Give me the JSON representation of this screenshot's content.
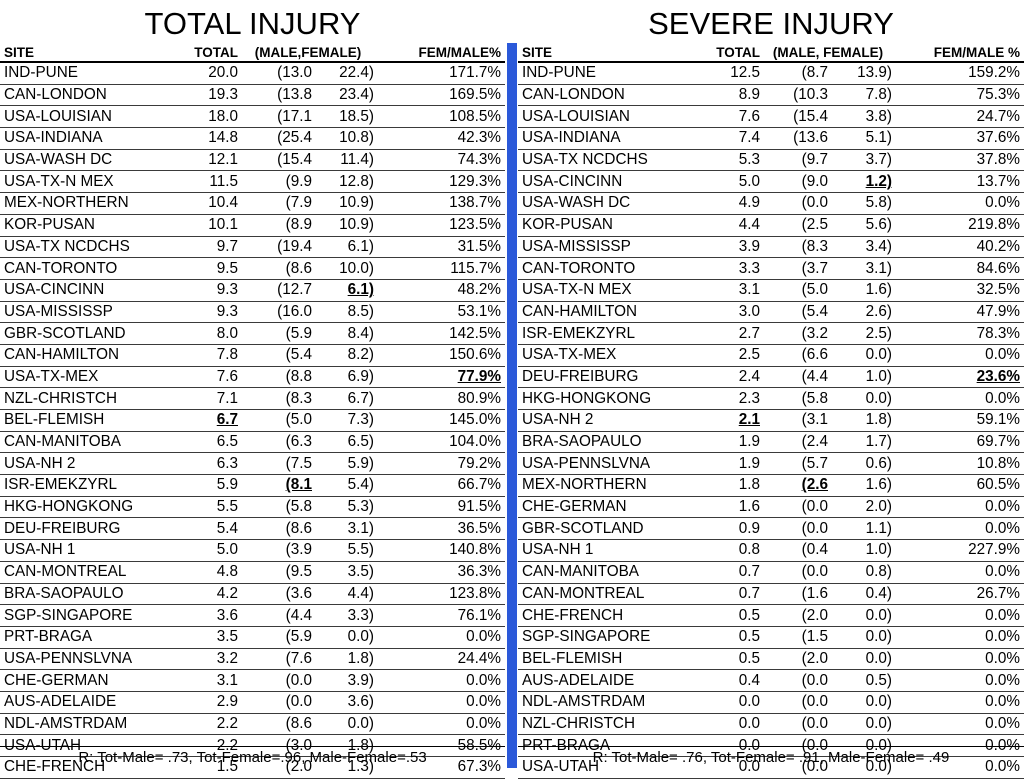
{
  "left": {
    "title": "TOTAL INJURY",
    "headers": {
      "site": "SITE",
      "total": "TOTAL",
      "mf": "(MALE,FEMALE)",
      "pct": "FEM/MALE%"
    },
    "rows": [
      {
        "site": "IND-PUNE",
        "total": "20.0",
        "male": "(13.0",
        "female": "22.4)",
        "pct": "171.7%"
      },
      {
        "site": "CAN-LONDON",
        "total": "19.3",
        "male": "(13.8",
        "female": "23.4)",
        "pct": "169.5%"
      },
      {
        "site": "USA-LOUISIAN",
        "total": "18.0",
        "male": "(17.1",
        "female": "18.5)",
        "pct": "108.5%"
      },
      {
        "site": "USA-INDIANA",
        "total": "14.8",
        "male": "(25.4",
        "female": "10.8)",
        "pct": "42.3%"
      },
      {
        "site": "USA-WASH DC",
        "total": "12.1",
        "male": "(15.4",
        "female": "11.4)",
        "pct": "74.3%"
      },
      {
        "site": "USA-TX-N MEX",
        "total": "11.5",
        "male": "(9.9",
        "female": "12.8)",
        "pct": "129.3%"
      },
      {
        "site": "MEX-NORTHERN",
        "total": "10.4",
        "male": "(7.9",
        "female": "10.9)",
        "pct": "138.7%"
      },
      {
        "site": "KOR-PUSAN",
        "total": "10.1",
        "male": "(8.9",
        "female": "10.9)",
        "pct": "123.5%"
      },
      {
        "site": "USA-TX NCDCHS",
        "total": "9.7",
        "male": "(19.4",
        "female": "6.1)",
        "pct": "31.5%"
      },
      {
        "site": "CAN-TORONTO",
        "total": "9.5",
        "male": "(8.6",
        "female": "10.0)",
        "pct": "115.7%"
      },
      {
        "site": "USA-CINCINN",
        "total": "9.3",
        "male": "(12.7",
        "female": "6.1)",
        "pct": "48.2%",
        "u": "female"
      },
      {
        "site": "USA-MISSISSP",
        "total": "9.3",
        "male": "(16.0",
        "female": "8.5)",
        "pct": "53.1%"
      },
      {
        "site": "GBR-SCOTLAND",
        "total": "8.0",
        "male": "(5.9",
        "female": "8.4)",
        "pct": "142.5%"
      },
      {
        "site": "CAN-HAMILTON",
        "total": "7.8",
        "male": "(5.4",
        "female": "8.2)",
        "pct": "150.6%"
      },
      {
        "site": "USA-TX-MEX",
        "total": "7.6",
        "male": "(8.8",
        "female": "6.9)",
        "pct": "77.9%",
        "u": "pct"
      },
      {
        "site": "NZL-CHRISTCH",
        "total": "7.1",
        "male": "(8.3",
        "female": "6.7)",
        "pct": "80.9%"
      },
      {
        "site": "BEL-FLEMISH",
        "total": "6.7",
        "male": "(5.0",
        "female": "7.3)",
        "pct": "145.0%",
        "u": "total"
      },
      {
        "site": "CAN-MANITOBA",
        "total": "6.5",
        "male": "(6.3",
        "female": "6.5)",
        "pct": "104.0%"
      },
      {
        "site": "USA-NH 2",
        "total": "6.3",
        "male": "(7.5",
        "female": "5.9)",
        "pct": "79.2%"
      },
      {
        "site": "ISR-EMEKZYRL",
        "total": "5.9",
        "male": "(8.1",
        "female": "5.4)",
        "pct": "66.7%",
        "u": "male"
      },
      {
        "site": "HKG-HONGKONG",
        "total": "5.5",
        "male": "(5.8",
        "female": "5.3)",
        "pct": "91.5%"
      },
      {
        "site": "DEU-FREIBURG",
        "total": "5.4",
        "male": "(8.6",
        "female": "3.1)",
        "pct": "36.5%"
      },
      {
        "site": "USA-NH 1",
        "total": "5.0",
        "male": "(3.9",
        "female": "5.5)",
        "pct": "140.8%"
      },
      {
        "site": "CAN-MONTREAL",
        "total": "4.8",
        "male": "(9.5",
        "female": "3.5)",
        "pct": "36.3%"
      },
      {
        "site": "BRA-SAOPAULO",
        "total": "4.2",
        "male": "(3.6",
        "female": "4.4)",
        "pct": "123.8%"
      },
      {
        "site": "SGP-SINGAPORE",
        "total": "3.6",
        "male": "(4.4",
        "female": "3.3)",
        "pct": "76.1%"
      },
      {
        "site": "PRT-BRAGA",
        "total": "3.5",
        "male": "(5.9",
        "female": "0.0)",
        "pct": "0.0%"
      },
      {
        "site": "USA-PENNSLVNA",
        "total": "3.2",
        "male": "(7.6",
        "female": "1.8)",
        "pct": "24.4%"
      },
      {
        "site": "CHE-GERMAN",
        "total": "3.1",
        "male": "(0.0",
        "female": "3.9)",
        "pct": "0.0%"
      },
      {
        "site": "AUS-ADELAIDE",
        "total": "2.9",
        "male": "(0.0",
        "female": "3.6)",
        "pct": "0.0%"
      },
      {
        "site": "NDL-AMSTRDAM",
        "total": "2.2",
        "male": "(8.6",
        "female": "0.0)",
        "pct": "0.0%"
      },
      {
        "site": "USA-UTAH",
        "total": "2.2",
        "male": "(3.0",
        "female": "1.8)",
        "pct": "58.5%"
      },
      {
        "site": "CHE-FRENCH",
        "total": "1.5",
        "male": "(2.0",
        "female": "1.3)",
        "pct": "67.3%"
      }
    ],
    "footer": "R: Tot-Male= .73, Tot-Female=.96, Male-Female=.53"
  },
  "right": {
    "title": "SEVERE INJURY",
    "headers": {
      "site": "SITE",
      "total": "TOTAL",
      "mf": "(MALE, FEMALE)",
      "pct": "FEM/MALE %"
    },
    "rows": [
      {
        "site": "IND-PUNE",
        "total": "12.5",
        "male": "(8.7",
        "female": "13.9)",
        "pct": "159.2%"
      },
      {
        "site": "CAN-LONDON",
        "total": "8.9",
        "male": "(10.3",
        "female": "7.8)",
        "pct": "75.3%"
      },
      {
        "site": "USA-LOUISIAN",
        "total": "7.6",
        "male": "(15.4",
        "female": "3.8)",
        "pct": "24.7%"
      },
      {
        "site": "USA-INDIANA",
        "total": "7.4",
        "male": "(13.6",
        "female": "5.1)",
        "pct": "37.6%"
      },
      {
        "site": "USA-TX NCDCHS",
        "total": "5.3",
        "male": "(9.7",
        "female": "3.7)",
        "pct": "37.8%"
      },
      {
        "site": "USA-CINCINN",
        "total": "5.0",
        "male": "(9.0",
        "female": "1.2)",
        "pct": "13.7%",
        "u": "female"
      },
      {
        "site": "USA-WASH DC",
        "total": "4.9",
        "male": "(0.0",
        "female": "5.8)",
        "pct": "0.0%"
      },
      {
        "site": "KOR-PUSAN",
        "total": "4.4",
        "male": "(2.5",
        "female": "5.6)",
        "pct": "219.8%"
      },
      {
        "site": "USA-MISSISSP",
        "total": "3.9",
        "male": "(8.3",
        "female": "3.4)",
        "pct": "40.2%"
      },
      {
        "site": "CAN-TORONTO",
        "total": "3.3",
        "male": "(3.7",
        "female": "3.1)",
        "pct": "84.6%"
      },
      {
        "site": "USA-TX-N MEX",
        "total": "3.1",
        "male": "(5.0",
        "female": "1.6)",
        "pct": "32.5%"
      },
      {
        "site": "CAN-HAMILTON",
        "total": "3.0",
        "male": "(5.4",
        "female": "2.6)",
        "pct": "47.9%"
      },
      {
        "site": "ISR-EMEKZYRL",
        "total": "2.7",
        "male": "(3.2",
        "female": "2.5)",
        "pct": "78.3%"
      },
      {
        "site": "USA-TX-MEX",
        "total": "2.5",
        "male": "(6.6",
        "female": "0.0)",
        "pct": "0.0%"
      },
      {
        "site": "DEU-FREIBURG",
        "total": "2.4",
        "male": "(4.4",
        "female": "1.0)",
        "pct": "23.6%",
        "u": "pct"
      },
      {
        "site": "HKG-HONGKONG",
        "total": "2.3",
        "male": "(5.8",
        "female": "0.0)",
        "pct": "0.0%"
      },
      {
        "site": "USA-NH 2",
        "total": "2.1",
        "male": "(3.1",
        "female": "1.8)",
        "pct": "59.1%",
        "u": "total"
      },
      {
        "site": "BRA-SAOPAULO",
        "total": "1.9",
        "male": "(2.4",
        "female": "1.7)",
        "pct": "69.7%"
      },
      {
        "site": "USA-PENNSLVNA",
        "total": "1.9",
        "male": "(5.7",
        "female": "0.6)",
        "pct": "10.8%"
      },
      {
        "site": "MEX-NORTHERN",
        "total": "1.8",
        "male": "(2.6",
        "female": "1.6)",
        "pct": "60.5%",
        "u": "male"
      },
      {
        "site": "CHE-GERMAN",
        "total": "1.6",
        "male": "(0.0",
        "female": "2.0)",
        "pct": "0.0%"
      },
      {
        "site": "GBR-SCOTLAND",
        "total": "0.9",
        "male": "(0.0",
        "female": "1.1)",
        "pct": "0.0%"
      },
      {
        "site": "USA-NH 1",
        "total": "0.8",
        "male": "(0.4",
        "female": "1.0)",
        "pct": "227.9%"
      },
      {
        "site": "CAN-MANITOBA",
        "total": "0.7",
        "male": "(0.0",
        "female": "0.8)",
        "pct": "0.0%"
      },
      {
        "site": "CAN-MONTREAL",
        "total": "0.7",
        "male": "(1.6",
        "female": "0.4)",
        "pct": "26.7%"
      },
      {
        "site": "CHE-FRENCH",
        "total": "0.5",
        "male": "(2.0",
        "female": "0.0)",
        "pct": "0.0%"
      },
      {
        "site": "SGP-SINGAPORE",
        "total": "0.5",
        "male": "(1.5",
        "female": "0.0)",
        "pct": "0.0%"
      },
      {
        "site": "BEL-FLEMISH",
        "total": "0.5",
        "male": "(2.0",
        "female": "0.0)",
        "pct": "0.0%"
      },
      {
        "site": "AUS-ADELAIDE",
        "total": "0.4",
        "male": "(0.0",
        "female": "0.5)",
        "pct": "0.0%"
      },
      {
        "site": "NDL-AMSTRDAM",
        "total": "0.0",
        "male": "(0.0",
        "female": "0.0)",
        "pct": "0.0%"
      },
      {
        "site": "NZL-CHRISTCH",
        "total": "0.0",
        "male": "(0.0",
        "female": "0.0)",
        "pct": "0.0%"
      },
      {
        "site": "PRT-BRAGA",
        "total": "0.0",
        "male": "(0.0",
        "female": "0.0)",
        "pct": "0.0%"
      },
      {
        "site": "USA-UTAH",
        "total": "0.0",
        "male": "(0.0",
        "female": "0.0)",
        "pct": "0.0%"
      }
    ],
    "footer": "R: Tot-Male= .76, Tot-Female= .91, Male-Female= .49"
  },
  "colors": {
    "divider": "#2b59d9"
  }
}
